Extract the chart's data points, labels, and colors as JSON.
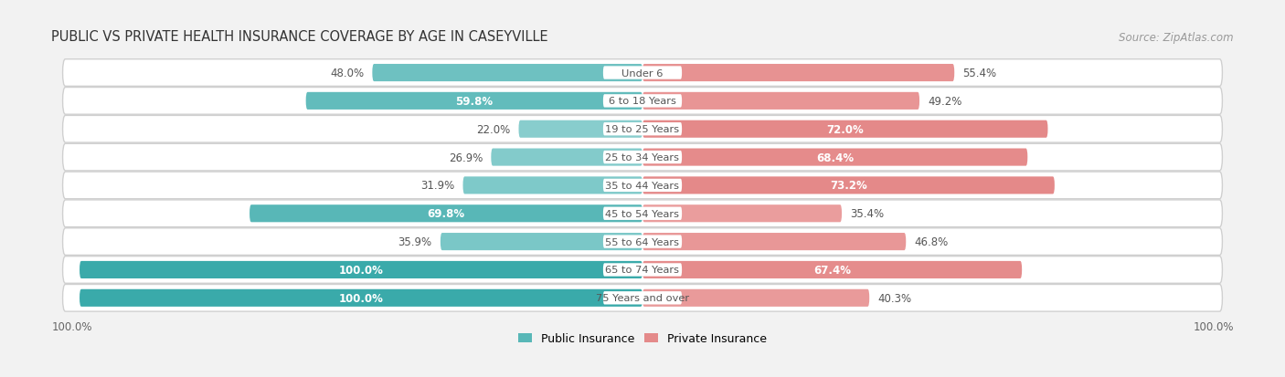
{
  "title": "PUBLIC VS PRIVATE HEALTH INSURANCE COVERAGE BY AGE IN CASEYVILLE",
  "source": "Source: ZipAtlas.com",
  "categories": [
    "Under 6",
    "6 to 18 Years",
    "19 to 25 Years",
    "25 to 34 Years",
    "35 to 44 Years",
    "45 to 54 Years",
    "55 to 64 Years",
    "65 to 74 Years",
    "75 Years and over"
  ],
  "public_values": [
    48.0,
    59.8,
    22.0,
    26.9,
    31.9,
    69.8,
    35.9,
    100.0,
    100.0
  ],
  "private_values": [
    55.4,
    49.2,
    72.0,
    68.4,
    73.2,
    35.4,
    46.8,
    67.4,
    40.3
  ],
  "public_color_strong": "#4db8b8",
  "public_color_medium": "#6ecece",
  "private_color_strong": "#e07b6a",
  "private_color_light": "#f0b0a8",
  "background_color": "#f2f2f2",
  "row_bg_color": "#ffffff",
  "row_border_color": "#d8d8d8",
  "bar_height": 0.62,
  "max_value": 100.0,
  "legend_public": "Public Insurance",
  "legend_private": "Private Insurance",
  "title_fontsize": 10.5,
  "legend_fontsize": 9,
  "category_fontsize": 8.2,
  "value_fontsize": 8.5,
  "source_fontsize": 8.5,
  "axis_label_fontsize": 8.5
}
